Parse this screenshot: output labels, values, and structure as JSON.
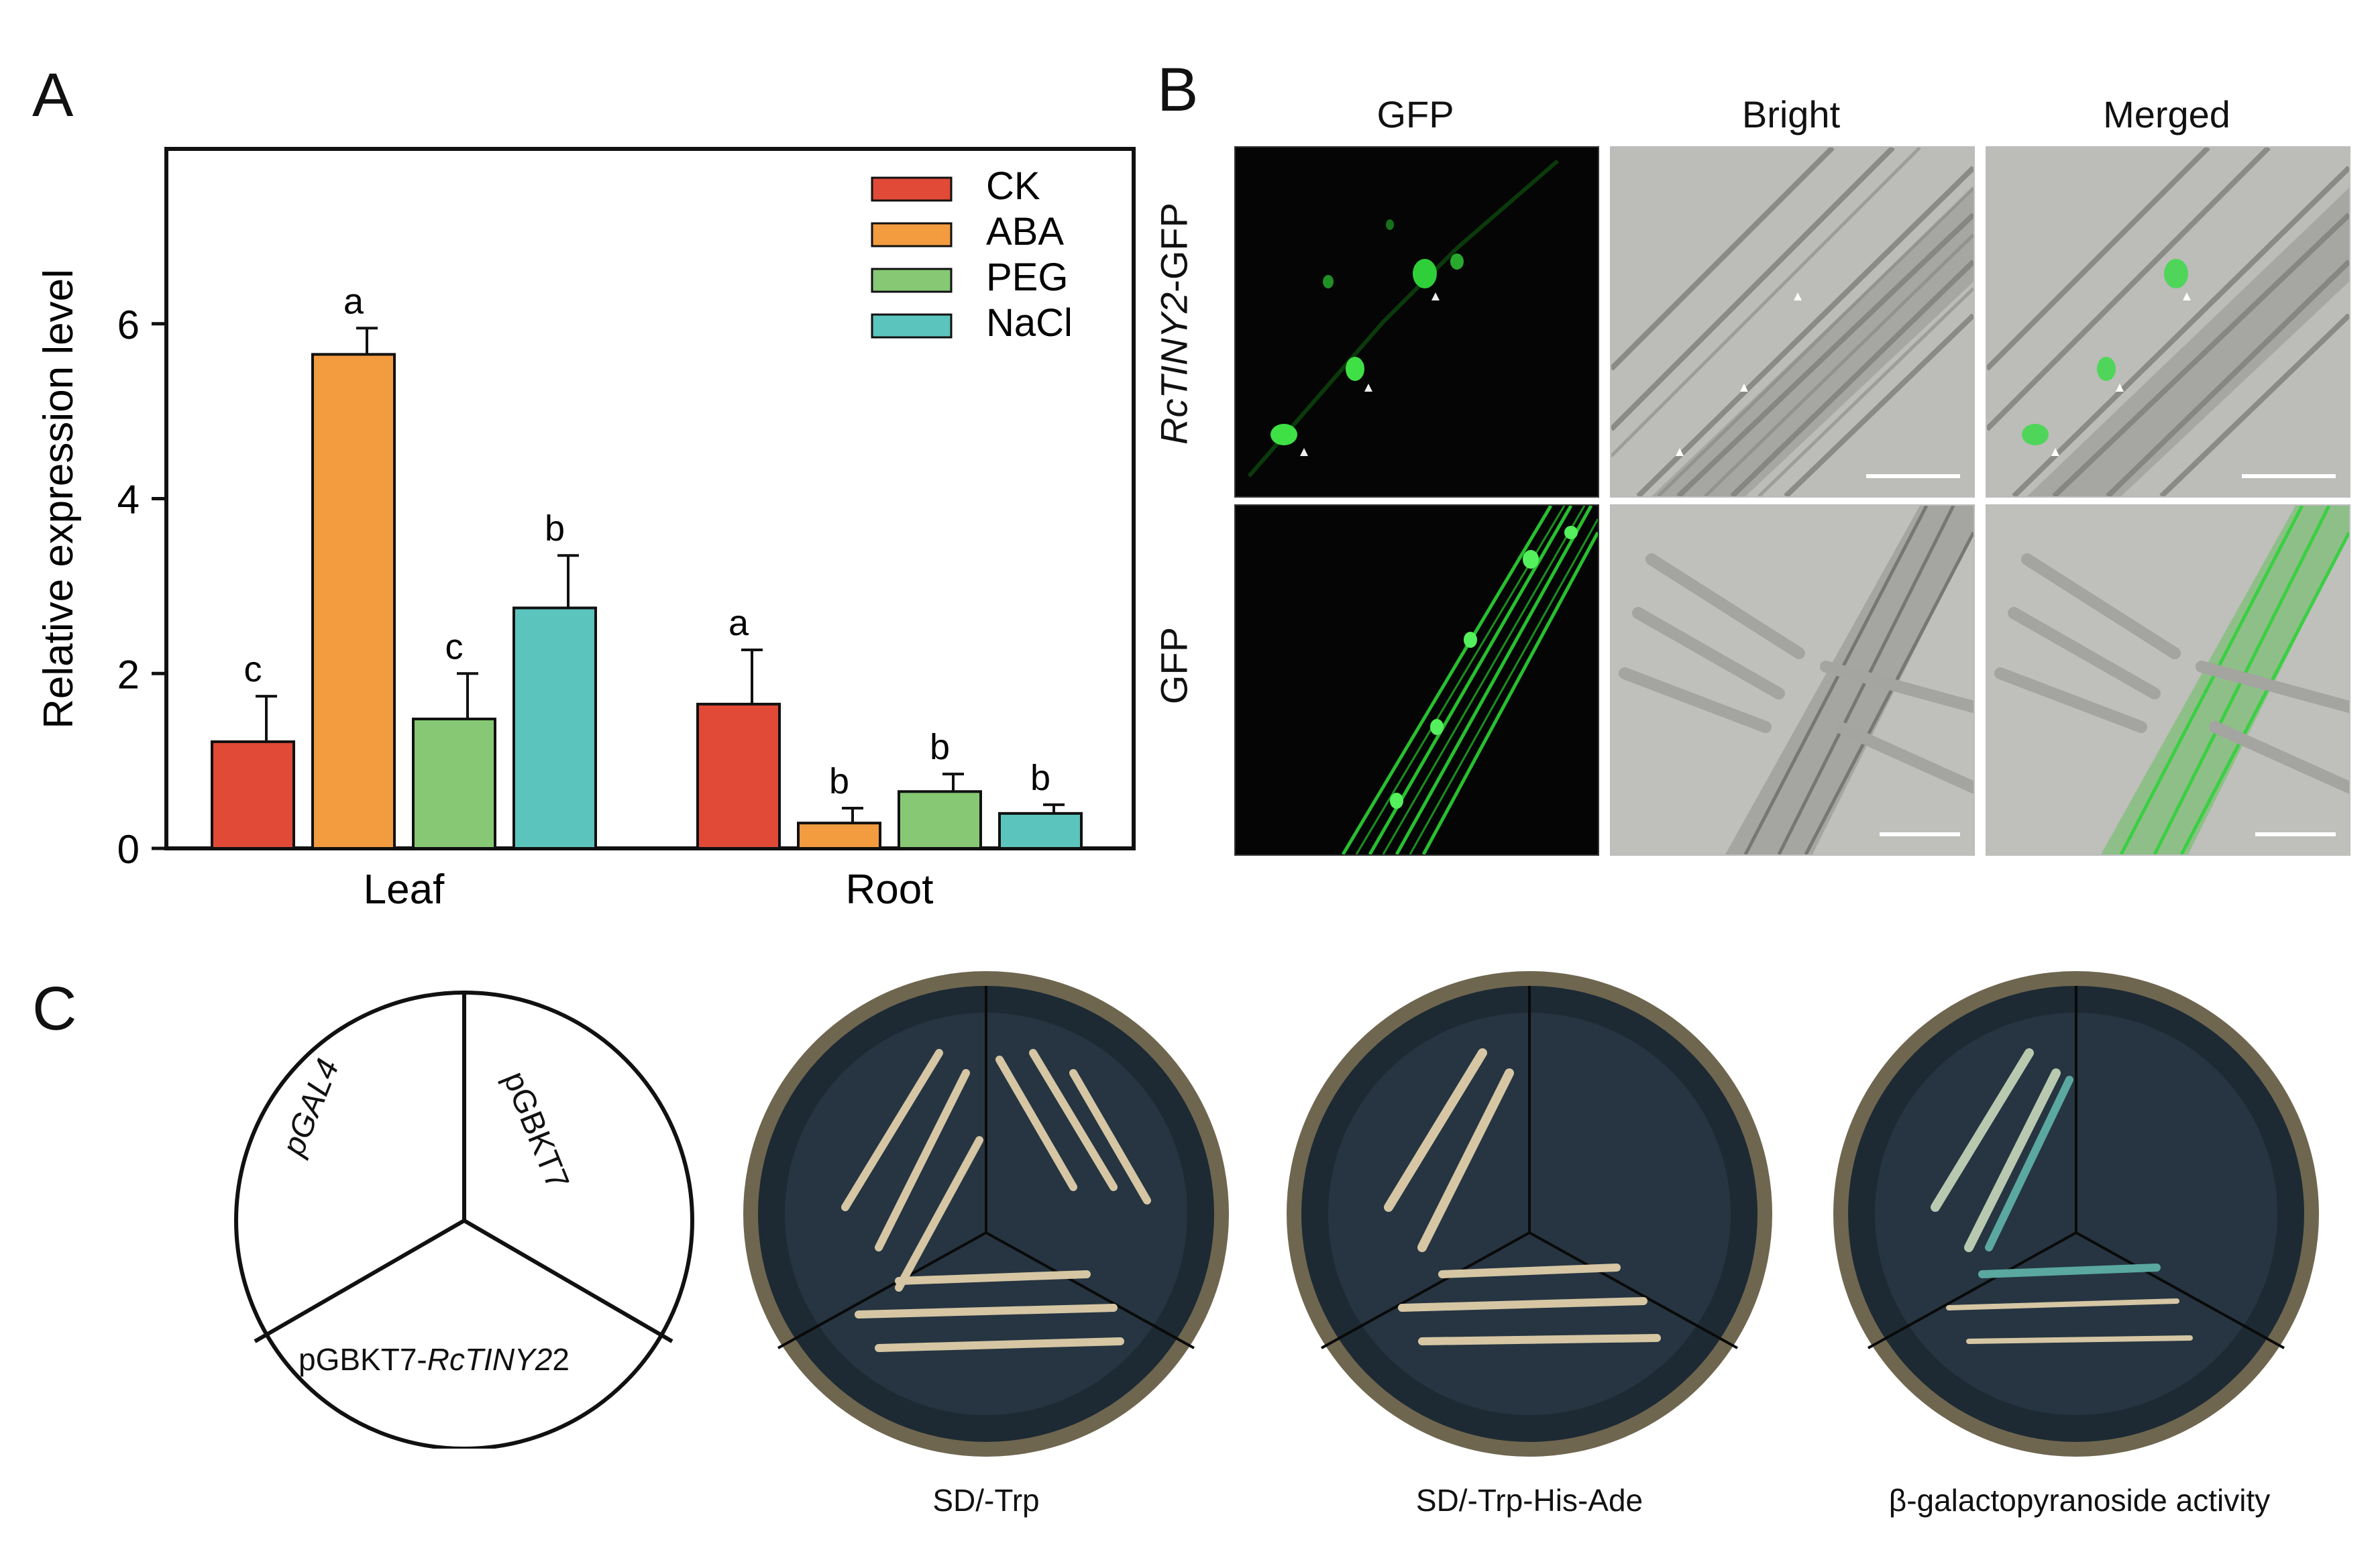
{
  "panels": {
    "a": "A",
    "b": "B",
    "c": "C"
  },
  "chart_data": {
    "type": "bar",
    "ylabel": "Relative expression level",
    "xlabel": "",
    "ylim": [
      0,
      8
    ],
    "yticks": [
      0,
      2,
      4,
      6
    ],
    "categories": [
      "Leaf",
      "Root"
    ],
    "legend_position": "top-right",
    "series": [
      {
        "name": "CK",
        "color": "#e04a37",
        "values": [
          1.22,
          1.65
        ],
        "errors": [
          0.52,
          0.62
        ],
        "labels": [
          "c",
          "a"
        ]
      },
      {
        "name": "ABA",
        "color": "#f29b3f",
        "values": [
          5.65,
          0.29
        ],
        "errors": [
          0.3,
          0.17
        ],
        "labels": [
          "a",
          "b"
        ]
      },
      {
        "name": "PEG",
        "color": "#86c873",
        "values": [
          1.48,
          0.65
        ],
        "errors": [
          0.52,
          0.2
        ],
        "labels": [
          "c",
          "b"
        ]
      },
      {
        "name": "NaCl",
        "color": "#5bc4bd",
        "values": [
          2.75,
          0.4
        ],
        "errors": [
          0.6,
          0.1
        ],
        "labels": [
          "b",
          "b"
        ]
      }
    ]
  },
  "micro": {
    "columns": [
      "GFP",
      "Bright",
      "Merged"
    ],
    "row1_italic": "RcTINY2",
    "row1_suffix": "-GFP",
    "row2": "GFP"
  },
  "yeast": {
    "sector_left_italic": "pGAL4",
    "sector_right": "pGBKT7",
    "sector_bottom_prefix": "pGBKT7-",
    "sector_bottom_italic": "RcTINY2",
    "plates": [
      "SD/-Trp",
      "SD/-Trp-His-Ade",
      "β-galactopyranoside activity"
    ]
  }
}
